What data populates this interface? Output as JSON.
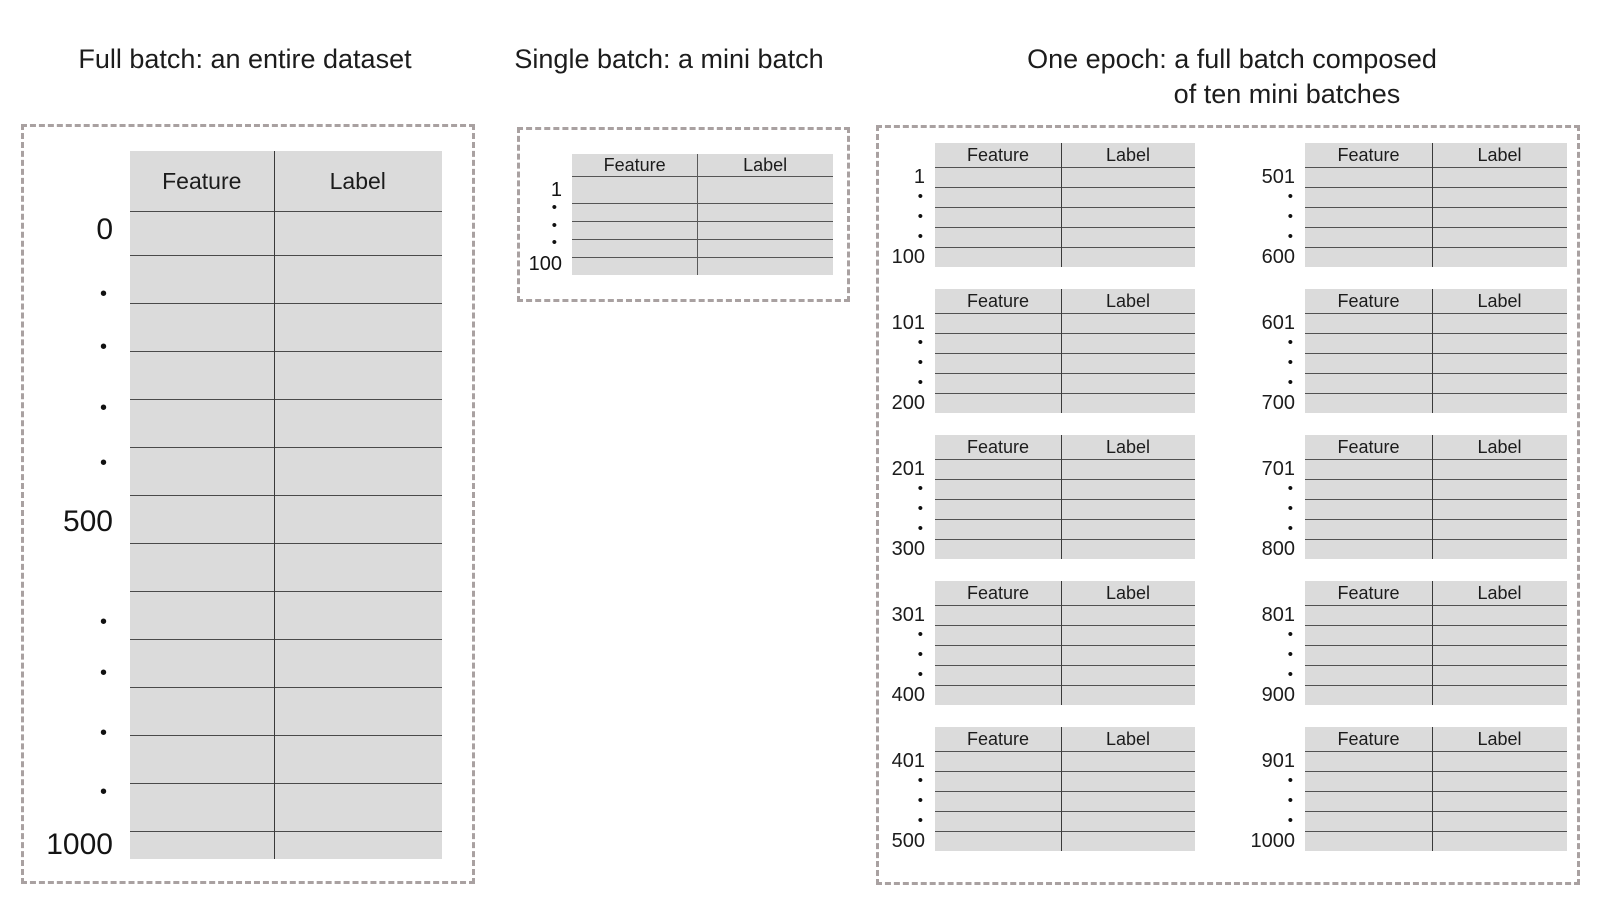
{
  "dot": "•",
  "table_headers": {
    "feature": "Feature",
    "label": "Label"
  },
  "full_batch": {
    "title": "Full batch: an entire dataset",
    "row_start": "0",
    "row_middle": "500",
    "row_end": "1000"
  },
  "single_batch": {
    "title": "Single batch: a mini batch",
    "row_start": "1",
    "row_end": "100"
  },
  "epoch": {
    "title_line1": "One epoch: a full batch composed",
    "title_line2": "of ten mini batches",
    "mini_batches": [
      {
        "start": "1",
        "end": "100"
      },
      {
        "start": "101",
        "end": "200"
      },
      {
        "start": "201",
        "end": "300"
      },
      {
        "start": "301",
        "end": "400"
      },
      {
        "start": "401",
        "end": "500"
      },
      {
        "start": "501",
        "end": "600"
      },
      {
        "start": "601",
        "end": "700"
      },
      {
        "start": "701",
        "end": "800"
      },
      {
        "start": "801",
        "end": "900"
      },
      {
        "start": "901",
        "end": "1000"
      }
    ]
  },
  "colors": {
    "table_fill": "#dbdbdb",
    "grid_line": "#4a4a4a",
    "dashed_border": "#a9a1a1",
    "text": "#1c1c1c"
  }
}
